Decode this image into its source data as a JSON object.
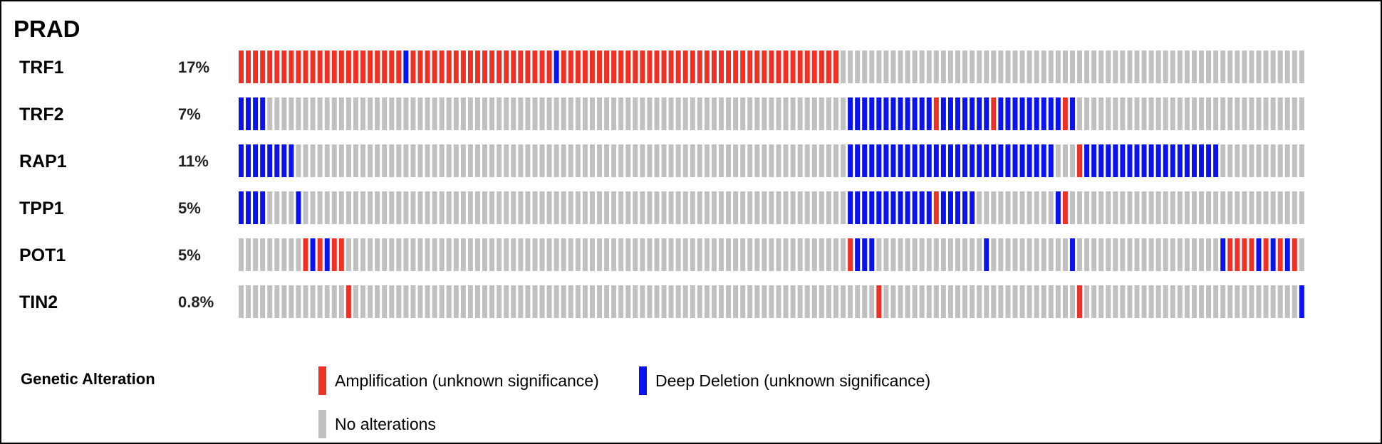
{
  "title": "PRAD",
  "colors": {
    "amplification": "#ee3124",
    "deep_deletion": "#0a12ee",
    "none": "#c0c0c0"
  },
  "chart_data": {
    "type": "oncoprint",
    "cancer_type": "PRAD",
    "n_samples": 149,
    "genes": [
      {
        "name": "TRF1",
        "percent": "17%",
        "alterations": [
          {
            "start": 0,
            "end": 83,
            "type": "amplification"
          },
          {
            "start": 23,
            "end": 23,
            "type": "deep_deletion"
          },
          {
            "start": 44,
            "end": 44,
            "type": "deep_deletion"
          }
        ]
      },
      {
        "name": "TRF2",
        "percent": "7%",
        "alterations": [
          {
            "start": 0,
            "end": 3,
            "type": "deep_deletion"
          },
          {
            "start": 85,
            "end": 97,
            "type": "deep_deletion"
          },
          {
            "start": 97,
            "end": 97,
            "type": "amplification"
          },
          {
            "start": 98,
            "end": 105,
            "type": "deep_deletion"
          },
          {
            "start": 105,
            "end": 105,
            "type": "amplification"
          },
          {
            "start": 106,
            "end": 114,
            "type": "deep_deletion"
          },
          {
            "start": 115,
            "end": 115,
            "type": "amplification"
          },
          {
            "start": 116,
            "end": 116,
            "type": "deep_deletion"
          }
        ]
      },
      {
        "name": "RAP1",
        "percent": "11%",
        "alterations": [
          {
            "start": 0,
            "end": 7,
            "type": "deep_deletion"
          },
          {
            "start": 85,
            "end": 113,
            "type": "deep_deletion"
          },
          {
            "start": 117,
            "end": 117,
            "type": "amplification"
          },
          {
            "start": 118,
            "end": 136,
            "type": "deep_deletion"
          }
        ]
      },
      {
        "name": "TPP1",
        "percent": "5%",
        "alterations": [
          {
            "start": 0,
            "end": 3,
            "type": "deep_deletion"
          },
          {
            "start": 8,
            "end": 8,
            "type": "deep_deletion"
          },
          {
            "start": 85,
            "end": 97,
            "type": "deep_deletion"
          },
          {
            "start": 97,
            "end": 97,
            "type": "amplification"
          },
          {
            "start": 98,
            "end": 102,
            "type": "deep_deletion"
          },
          {
            "start": 114,
            "end": 114,
            "type": "deep_deletion"
          },
          {
            "start": 115,
            "end": 115,
            "type": "amplification"
          }
        ]
      },
      {
        "name": "POT1",
        "percent": "5%",
        "alterations": [
          {
            "start": 9,
            "end": 9,
            "type": "amplification"
          },
          {
            "start": 10,
            "end": 10,
            "type": "deep_deletion"
          },
          {
            "start": 11,
            "end": 11,
            "type": "amplification"
          },
          {
            "start": 12,
            "end": 12,
            "type": "deep_deletion"
          },
          {
            "start": 13,
            "end": 14,
            "type": "amplification"
          },
          {
            "start": 85,
            "end": 85,
            "type": "amplification"
          },
          {
            "start": 86,
            "end": 88,
            "type": "deep_deletion"
          },
          {
            "start": 104,
            "end": 104,
            "type": "deep_deletion"
          },
          {
            "start": 116,
            "end": 116,
            "type": "deep_deletion"
          },
          {
            "start": 137,
            "end": 137,
            "type": "deep_deletion"
          },
          {
            "start": 138,
            "end": 141,
            "type": "amplification"
          },
          {
            "start": 142,
            "end": 142,
            "type": "deep_deletion"
          },
          {
            "start": 143,
            "end": 143,
            "type": "amplification"
          },
          {
            "start": 144,
            "end": 144,
            "type": "deep_deletion"
          },
          {
            "start": 145,
            "end": 145,
            "type": "amplification"
          },
          {
            "start": 146,
            "end": 146,
            "type": "deep_deletion"
          },
          {
            "start": 147,
            "end": 147,
            "type": "amplification"
          }
        ]
      },
      {
        "name": "TIN2",
        "percent": "0.8%",
        "alterations": [
          {
            "start": 15,
            "end": 15,
            "type": "amplification"
          },
          {
            "start": 89,
            "end": 89,
            "type": "amplification"
          },
          {
            "start": 117,
            "end": 117,
            "type": "amplification"
          },
          {
            "start": 148,
            "end": 148,
            "type": "deep_deletion"
          }
        ]
      }
    ],
    "legend": {
      "title": "Genetic Alteration",
      "items": [
        {
          "type": "amplification",
          "label": "Amplification (unknown significance)"
        },
        {
          "type": "deep_deletion",
          "label": "Deep Deletion (unknown significance)"
        },
        {
          "type": "none",
          "label": "No alterations"
        }
      ]
    }
  }
}
